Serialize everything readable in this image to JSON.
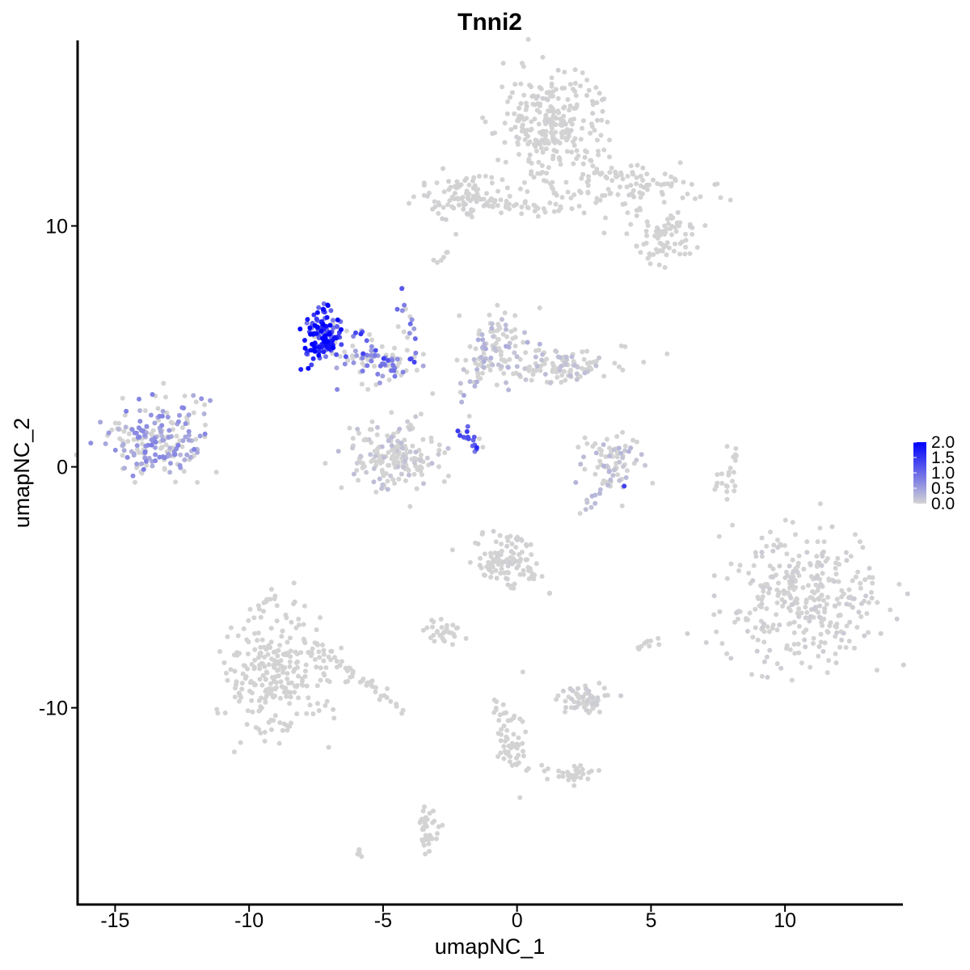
{
  "chart_data": {
    "type": "scatter",
    "title": "Tnni2",
    "xlabel": "umapNC_1",
    "ylabel": "umapNC_2",
    "xlim": [
      -16.4,
      14.4
    ],
    "ylim": [
      -18.2,
      17.7
    ],
    "x_ticks": [
      -15,
      -10,
      -5,
      0,
      5,
      10
    ],
    "x_tick_labels": [
      "-15",
      "-10",
      "-5",
      "0",
      "5",
      "10"
    ],
    "y_ticks": [
      -10,
      0,
      10
    ],
    "y_tick_labels": [
      "-10",
      "0",
      "10"
    ],
    "grid": false,
    "legend": {
      "placement": "right",
      "type": "colorbar",
      "range": [
        0.0,
        2.0
      ],
      "ticks": [
        0.0,
        0.5,
        1.0,
        1.5,
        2.0
      ],
      "tick_labels": [
        "0.0",
        "0.5",
        "1.0",
        "1.5",
        "2.0"
      ],
      "low_color": "#d3d3d3",
      "high_color": "#0000ff"
    },
    "clusters": [
      {
        "cx": 1.3,
        "cy": 14.2,
        "sx": 1.0,
        "sy": 1.1,
        "n": 260,
        "expr": 0.02
      },
      {
        "cx": 4.3,
        "cy": 11.4,
        "sx": 1.4,
        "sy": 0.6,
        "n": 80,
        "expr": 0.02
      },
      {
        "cx": 5.5,
        "cy": 9.5,
        "sx": 0.6,
        "sy": 0.5,
        "n": 70,
        "expr": 0.0
      },
      {
        "cx": -2.1,
        "cy": 11.3,
        "sx": 0.9,
        "sy": 0.5,
        "n": 90,
        "expr": 0.02
      },
      {
        "cx": -13.5,
        "cy": 1.2,
        "sx": 0.9,
        "sy": 0.8,
        "n": 200,
        "expr": 0.55
      },
      {
        "cx": -7.3,
        "cy": 5.3,
        "sx": 0.35,
        "sy": 0.55,
        "n": 120,
        "expr": 1.55
      },
      {
        "cx": -5.0,
        "cy": 4.2,
        "sx": 0.8,
        "sy": 0.4,
        "n": 60,
        "expr": 0.65
      },
      {
        "cx": -4.5,
        "cy": 0.5,
        "sx": 0.9,
        "sy": 0.7,
        "n": 180,
        "expr": 0.15
      },
      {
        "cx": -0.8,
        "cy": 5.0,
        "sx": 0.6,
        "sy": 0.7,
        "n": 90,
        "expr": 0.25
      },
      {
        "cx": 1.5,
        "cy": 4.2,
        "sx": 1.3,
        "sy": 0.35,
        "n": 120,
        "expr": 0.15
      },
      {
        "cx": 3.6,
        "cy": 0.3,
        "sx": 0.6,
        "sy": 0.6,
        "n": 70,
        "expr": 0.2
      },
      {
        "cx": 10.6,
        "cy": -5.5,
        "sx": 1.4,
        "sy": 1.4,
        "n": 340,
        "expr": 0.05
      },
      {
        "cx": -9.0,
        "cy": -8.5,
        "sx": 1.0,
        "sy": 1.2,
        "n": 260,
        "expr": 0.01
      },
      {
        "cx": -0.5,
        "cy": -3.8,
        "sx": 0.6,
        "sy": 0.6,
        "n": 100,
        "expr": 0.03
      },
      {
        "cx": 2.5,
        "cy": -9.6,
        "sx": 0.5,
        "sy": 0.3,
        "n": 60,
        "expr": 0.05
      },
      {
        "cx": -2.6,
        "cy": -6.9,
        "sx": 0.35,
        "sy": 0.25,
        "n": 30,
        "expr": 0.0
      },
      {
        "cx": -3.3,
        "cy": -14.9,
        "sx": 0.2,
        "sy": 0.5,
        "n": 35,
        "expr": 0.0
      },
      {
        "cx": -0.2,
        "cy": -11.5,
        "sx": 0.3,
        "sy": 0.8,
        "n": 40,
        "expr": 0.0
      },
      {
        "cx": 2.3,
        "cy": -12.8,
        "sx": 0.3,
        "sy": 0.2,
        "n": 20,
        "expr": 0.0
      },
      {
        "cx": 8.0,
        "cy": -0.2,
        "sx": 0.15,
        "sy": 0.5,
        "n": 15,
        "expr": 0.0
      }
    ],
    "trails": [
      {
        "x1": -7.0,
        "y1": 4.6,
        "x2": -3.5,
        "y2": 4.5,
        "n": 35,
        "expr": 1.0
      },
      {
        "x1": -4.4,
        "y1": 7.4,
        "x2": -3.9,
        "y2": 5.3,
        "n": 14,
        "expr": 0.75
      },
      {
        "x1": -2.1,
        "y1": 1.6,
        "x2": -1.4,
        "y2": 0.8,
        "n": 18,
        "expr": 1.3
      },
      {
        "x1": -7.0,
        "y1": 5.9,
        "x2": -5.5,
        "y2": 5.4,
        "n": 16,
        "expr": 1.1
      },
      {
        "x1": -12.2,
        "y1": 0.2,
        "x2": -11.5,
        "y2": 2.8,
        "n": 10,
        "expr": 0.4
      },
      {
        "x1": -2.2,
        "y1": 2.6,
        "x2": -1.2,
        "y2": 4.2,
        "n": 14,
        "expr": 0.3
      },
      {
        "x1": -8.0,
        "y1": -7.0,
        "x2": -4.0,
        "y2": -10.3,
        "n": 45,
        "expr": 0.0
      },
      {
        "x1": -9.5,
        "y1": -6.0,
        "x2": -9.0,
        "y2": -5.1,
        "n": 10,
        "expr": 0.0
      },
      {
        "x1": 2.8,
        "y1": 12.3,
        "x2": 5.8,
        "y2": 11.7,
        "n": 30,
        "expr": 0.0
      },
      {
        "x1": -2.5,
        "y1": 11.2,
        "x2": 2.0,
        "y2": 10.6,
        "n": 35,
        "expr": 0.0
      },
      {
        "x1": 0.8,
        "y1": 12.4,
        "x2": 1.6,
        "y2": 10.8,
        "n": 12,
        "expr": 0.0
      },
      {
        "x1": -0.3,
        "y1": -3.5,
        "x2": 1.3,
        "y2": -5.3,
        "n": 18,
        "expr": 0.0
      },
      {
        "x1": 0.2,
        "y1": -12.4,
        "x2": 2.3,
        "y2": -12.8,
        "n": 14,
        "expr": 0.0
      },
      {
        "x1": -0.8,
        "y1": -9.5,
        "x2": -0.2,
        "y2": -11.8,
        "n": 18,
        "expr": 0.0
      },
      {
        "x1": 2.4,
        "y1": -2.0,
        "x2": 3.9,
        "y2": 0.3,
        "n": 16,
        "expr": 0.2
      },
      {
        "x1": 4.5,
        "y1": -7.5,
        "x2": 5.3,
        "y2": -7.2,
        "n": 10,
        "expr": 0.0
      },
      {
        "x1": -6.0,
        "y1": -16.1,
        "x2": -5.8,
        "y2": -15.9,
        "n": 5,
        "expr": 0.0
      },
      {
        "x1": -2.9,
        "y1": 8.6,
        "x2": -2.6,
        "y2": 8.9,
        "n": 6,
        "expr": 0.0
      },
      {
        "x1": 7.2,
        "y1": -1.2,
        "x2": 8.2,
        "y2": 1.0,
        "n": 8,
        "expr": 0.0
      }
    ],
    "highlights": [
      {
        "x": -7.45,
        "y": 5.8,
        "value": 2.0
      },
      {
        "x": -7.2,
        "y": 5.2,
        "value": 2.0
      },
      {
        "x": -7.6,
        "y": 5.5,
        "value": 1.9
      },
      {
        "x": -7.3,
        "y": 6.0,
        "value": 1.8
      },
      {
        "x": -7.0,
        "y": 4.9,
        "value": 1.8
      },
      {
        "x": -1.5,
        "y": 0.8,
        "value": 1.6
      },
      {
        "x": 4.0,
        "y": -0.8,
        "value": 1.4
      },
      {
        "x": -4.3,
        "y": 7.4,
        "value": 1.2
      }
    ]
  }
}
